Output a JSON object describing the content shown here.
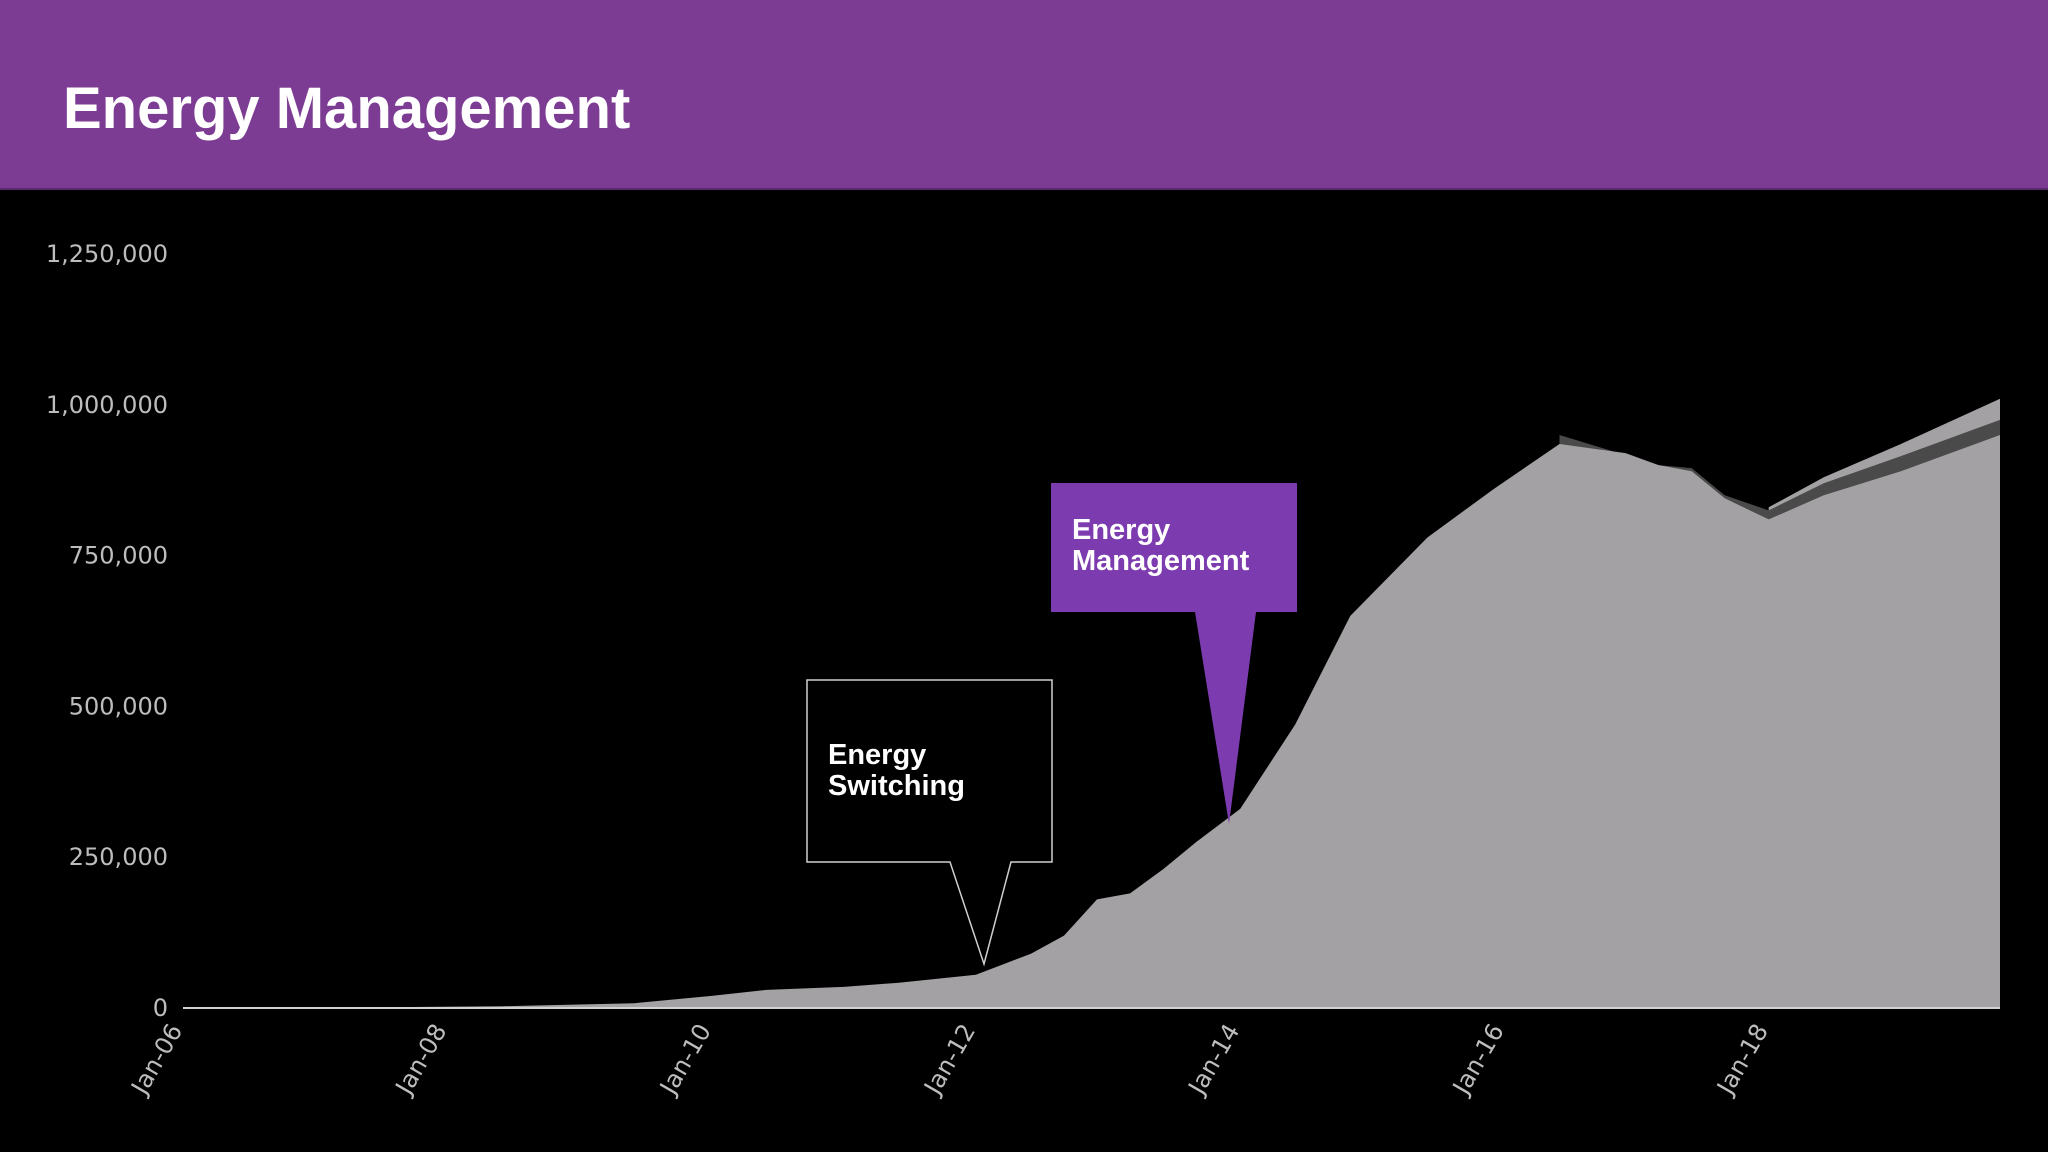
{
  "header": {
    "title": "Energy Management",
    "background_color": "#7d3c93"
  },
  "callouts": [
    {
      "label_lines": [
        "Energy",
        "Switching"
      ],
      "style": "outline",
      "points_to": "Jan-12"
    },
    {
      "label_lines": [
        "Energy",
        "Management"
      ],
      "style": "filled",
      "color": "#7d3bb0",
      "points_to": "Jan-14"
    }
  ],
  "chart_data": {
    "type": "area",
    "title": "",
    "xlabel": "",
    "ylabel": "",
    "x_tick_labels": [
      "Jan-06",
      "Jan-08",
      "Jan-10",
      "Jan-12",
      "Jan-14",
      "Jan-16",
      "Jan-18"
    ],
    "y_tick_labels": [
      "0",
      "250,000",
      "500,000",
      "750,000",
      "1,000,000",
      "1,250,000"
    ],
    "xlim": [
      "2006-01",
      "2019-10"
    ],
    "ylim": [
      0,
      1250000
    ],
    "grid": false,
    "colors": {
      "primary_area": "#a3a1a3",
      "secondary_band": "#4a4a4a",
      "axis": "#d0d0d0",
      "background": "#000000"
    },
    "series": [
      {
        "values": [
          {
            "x": "2006-01",
            "y": 0
          },
          {
            "x": "2007-06",
            "y": 1000
          },
          {
            "x": "2008-06",
            "y": 3000
          },
          {
            "x": "2009-06",
            "y": 8000
          },
          {
            "x": "2010-01",
            "y": 20000
          },
          {
            "x": "2010-06",
            "y": 30000
          },
          {
            "x": "2011-01",
            "y": 35000
          },
          {
            "x": "2011-06",
            "y": 42000
          },
          {
            "x": "2012-01",
            "y": 55000
          },
          {
            "x": "2012-06",
            "y": 90000
          },
          {
            "x": "2012-09",
            "y": 120000
          },
          {
            "x": "2012-12",
            "y": 180000
          },
          {
            "x": "2013-03",
            "y": 190000
          },
          {
            "x": "2013-06",
            "y": 230000
          },
          {
            "x": "2013-09",
            "y": 275000
          },
          {
            "x": "2014-01",
            "y": 330000
          },
          {
            "x": "2014-06",
            "y": 470000
          },
          {
            "x": "2014-11",
            "y": 650000
          },
          {
            "x": "2015-06",
            "y": 780000
          },
          {
            "x": "2015-12",
            "y": 860000
          },
          {
            "x": "2016-06",
            "y": 935000
          },
          {
            "x": "2016-12",
            "y": 920000
          },
          {
            "x": "2017-03",
            "y": 900000
          },
          {
            "x": "2017-06",
            "y": 890000
          },
          {
            "x": "2017-09",
            "y": 845000
          },
          {
            "x": "2018-01",
            "y": 810000
          },
          {
            "x": "2018-06",
            "y": 850000
          },
          {
            "x": "2019-01",
            "y": 890000
          },
          {
            "x": "2019-10",
            "y": 950000
          }
        ]
      },
      {
        "values": [
          {
            "x": "2016-06",
            "y": 950000
          },
          {
            "x": "2017-03",
            "y": 900000
          },
          {
            "x": "2017-06",
            "y": 895000
          },
          {
            "x": "2017-09",
            "y": 850000
          },
          {
            "x": "2018-01",
            "y": 825000
          },
          {
            "x": "2018-06",
            "y": 870000
          },
          {
            "x": "2019-01",
            "y": 915000
          },
          {
            "x": "2019-10",
            "y": 975000
          }
        ]
      },
      {
        "values": [
          {
            "x": "2018-01",
            "y": 830000
          },
          {
            "x": "2018-06",
            "y": 880000
          },
          {
            "x": "2019-01",
            "y": 935000
          },
          {
            "x": "2019-10",
            "y": 1010000
          }
        ]
      }
    ]
  }
}
